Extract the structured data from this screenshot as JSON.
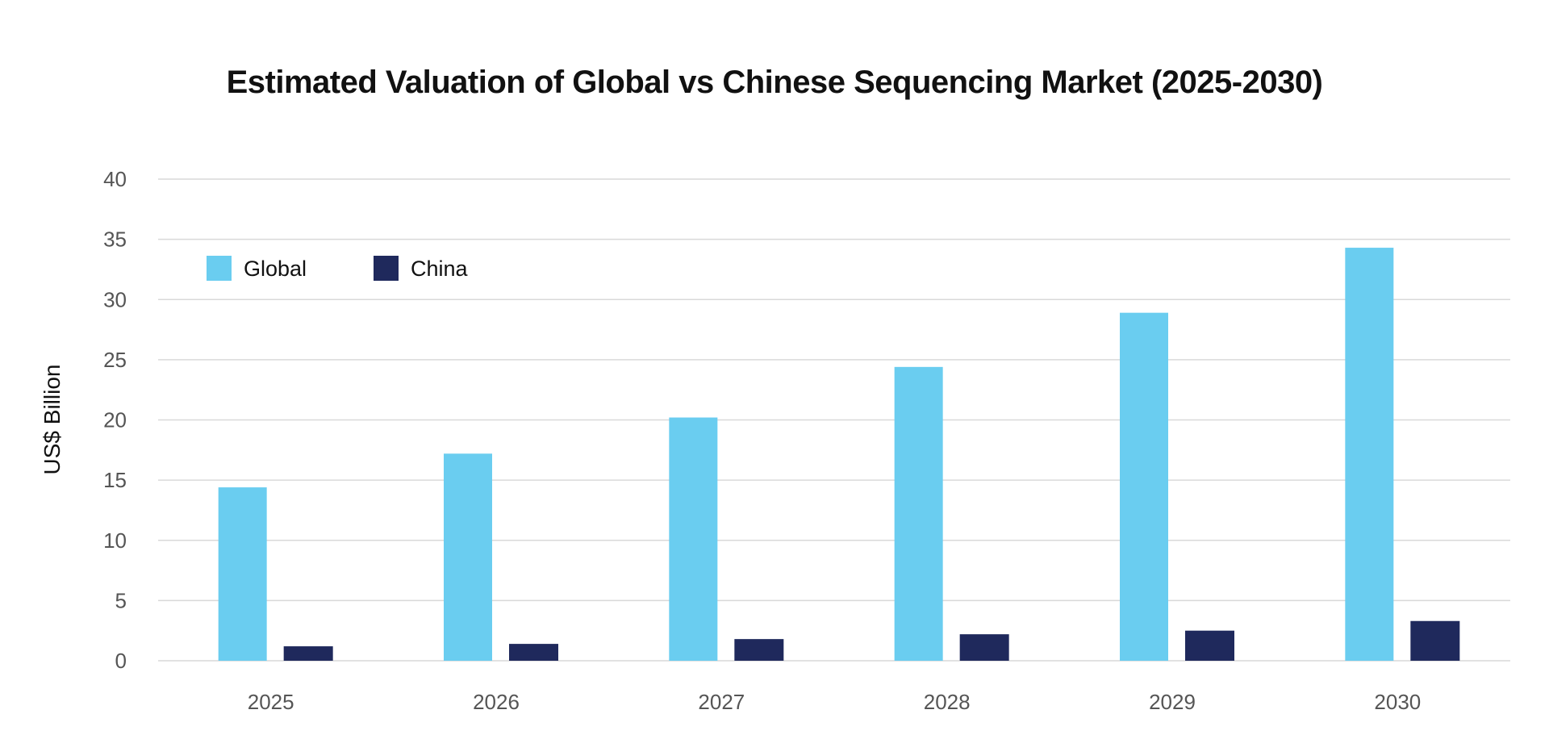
{
  "chart_data": {
    "type": "bar",
    "title": "Estimated Valuation of Global vs Chinese Sequencing Market (2025-2030)",
    "xlabel": "",
    "ylabel": "US$ Billion",
    "ylim": [
      0,
      40
    ],
    "yticks": [
      "0",
      "5",
      "10",
      "15",
      "20",
      "25",
      "30",
      "35",
      "40"
    ],
    "grid": true,
    "legend_position": "top-left",
    "categories": [
      "2025",
      "2026",
      "2027",
      "2028",
      "2029",
      "2030"
    ],
    "series": [
      {
        "name": "Global",
        "color": "#6ACDF0",
        "values": [
          14.4,
          17.2,
          20.2,
          24.4,
          28.9,
          34.3
        ]
      },
      {
        "name": "China",
        "color": "#1F295C",
        "values": [
          1.2,
          1.4,
          1.8,
          2.2,
          2.5,
          3.3
        ]
      }
    ]
  }
}
